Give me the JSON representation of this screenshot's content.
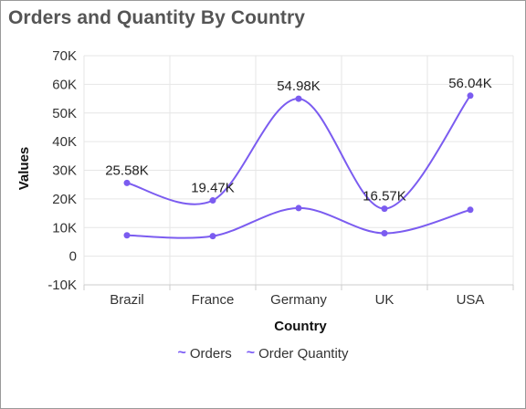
{
  "title": "Orders and Quantity By Country",
  "colors": {
    "line": "#7b5cf0",
    "grid": "#e6e6e6",
    "axis": "#cccccc"
  },
  "chart_data": {
    "type": "line",
    "smooth": true,
    "categories": [
      "Brazil",
      "France",
      "Germany",
      "UK",
      "USA"
    ],
    "xlabel": "Country",
    "ylabel": "Values",
    "ylim": [
      -10000,
      70000
    ],
    "yticks": [
      -10000,
      0,
      10000,
      20000,
      30000,
      40000,
      50000,
      60000,
      70000
    ],
    "ytick_labels": [
      "-10K",
      "0",
      "10K",
      "20K",
      "30K",
      "40K",
      "50K",
      "60K",
      "70K"
    ],
    "grid": true,
    "legend_position": "bottom",
    "series": [
      {
        "name": "Orders",
        "values": [
          25580,
          19470,
          54980,
          16570,
          56040
        ],
        "labels": [
          "25.58K",
          "19.47K",
          "54.98K",
          "16.57K",
          "56.04K"
        ]
      },
      {
        "name": "Order Quantity",
        "values": [
          7300,
          7000,
          16800,
          8000,
          16200
        ]
      }
    ]
  },
  "legend": {
    "icon": "~",
    "items": [
      "Orders",
      "Order Quantity"
    ]
  }
}
